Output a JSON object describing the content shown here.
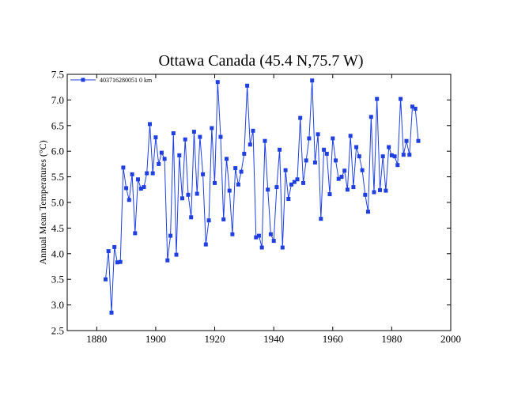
{
  "chart_data": {
    "type": "line",
    "title": "Ottawa Canada (45.4 N,75.7 W)",
    "xlabel": "",
    "ylabel": "Annual Mean Temperatures (°C)",
    "xlim": [
      1870,
      2000
    ],
    "ylim": [
      2.5,
      7.5
    ],
    "xticks": [
      "1880",
      "1900",
      "1920",
      "1940",
      "1960",
      "1980",
      "2000"
    ],
    "yticks": [
      "2.5",
      "3.0",
      "3.5",
      "4.0",
      "4.5",
      "5.0",
      "5.5",
      "6.0",
      "6.5",
      "7.0",
      "7.5"
    ],
    "grid": false,
    "legend_position": "top-left",
    "series": [
      {
        "name": "403716280051  0 km",
        "color": "#1f3fe0",
        "marker": "square",
        "x": [
          1883,
          1884,
          1885,
          1886,
          1887,
          1888,
          1889,
          1890,
          1891,
          1892,
          1893,
          1894,
          1895,
          1896,
          1897,
          1898,
          1899,
          1900,
          1901,
          1902,
          1903,
          1904,
          1905,
          1906,
          1907,
          1908,
          1909,
          1910,
          1911,
          1912,
          1913,
          1914,
          1915,
          1916,
          1917,
          1918,
          1919,
          1920,
          1921,
          1922,
          1923,
          1924,
          1925,
          1926,
          1927,
          1928,
          1929,
          1930,
          1931,
          1932,
          1933,
          1934,
          1935,
          1936,
          1937,
          1938,
          1939,
          1940,
          1941,
          1942,
          1943,
          1944,
          1945,
          1946,
          1947,
          1948,
          1949,
          1950,
          1951,
          1952,
          1953,
          1954,
          1955,
          1956,
          1957,
          1958,
          1959,
          1960,
          1961,
          1962,
          1963,
          1964,
          1965,
          1966,
          1967,
          1968,
          1969,
          1970,
          1971,
          1972,
          1973,
          1974,
          1975,
          1976,
          1977,
          1978,
          1979,
          1980,
          1981,
          1982,
          1983,
          1984,
          1985,
          1986,
          1987,
          1988,
          1989
        ],
        "values": [
          3.5,
          4.05,
          2.85,
          4.13,
          3.83,
          3.84,
          5.68,
          5.28,
          5.05,
          5.55,
          4.4,
          5.45,
          5.27,
          5.3,
          5.57,
          6.53,
          5.57,
          6.27,
          5.75,
          5.97,
          5.85,
          3.87,
          4.35,
          6.35,
          3.98,
          5.92,
          5.08,
          6.23,
          5.15,
          4.71,
          6.38,
          5.17,
          6.28,
          5.55,
          4.18,
          4.65,
          6.45,
          5.38,
          7.35,
          6.28,
          4.67,
          5.85,
          5.23,
          4.38,
          5.67,
          5.35,
          5.6,
          5.95,
          7.28,
          6.13,
          6.4,
          4.32,
          4.35,
          4.12,
          6.2,
          5.25,
          4.38,
          4.25,
          5.3,
          6.03,
          4.12,
          5.63,
          5.07,
          5.35,
          5.4,
          5.45,
          6.65,
          5.38,
          5.82,
          6.25,
          7.38,
          5.78,
          6.33,
          4.68,
          6.03,
          5.95,
          5.16,
          6.25,
          5.82,
          5.46,
          5.5,
          5.62,
          5.25,
          6.3,
          5.3,
          6.08,
          5.9,
          5.63,
          5.15,
          4.82,
          6.67,
          5.2,
          7.02,
          5.24,
          5.9,
          5.23,
          6.08,
          5.92,
          5.9,
          5.73,
          7.02,
          5.93,
          6.2,
          5.93,
          6.87,
          6.83,
          6.2
        ]
      }
    ]
  }
}
